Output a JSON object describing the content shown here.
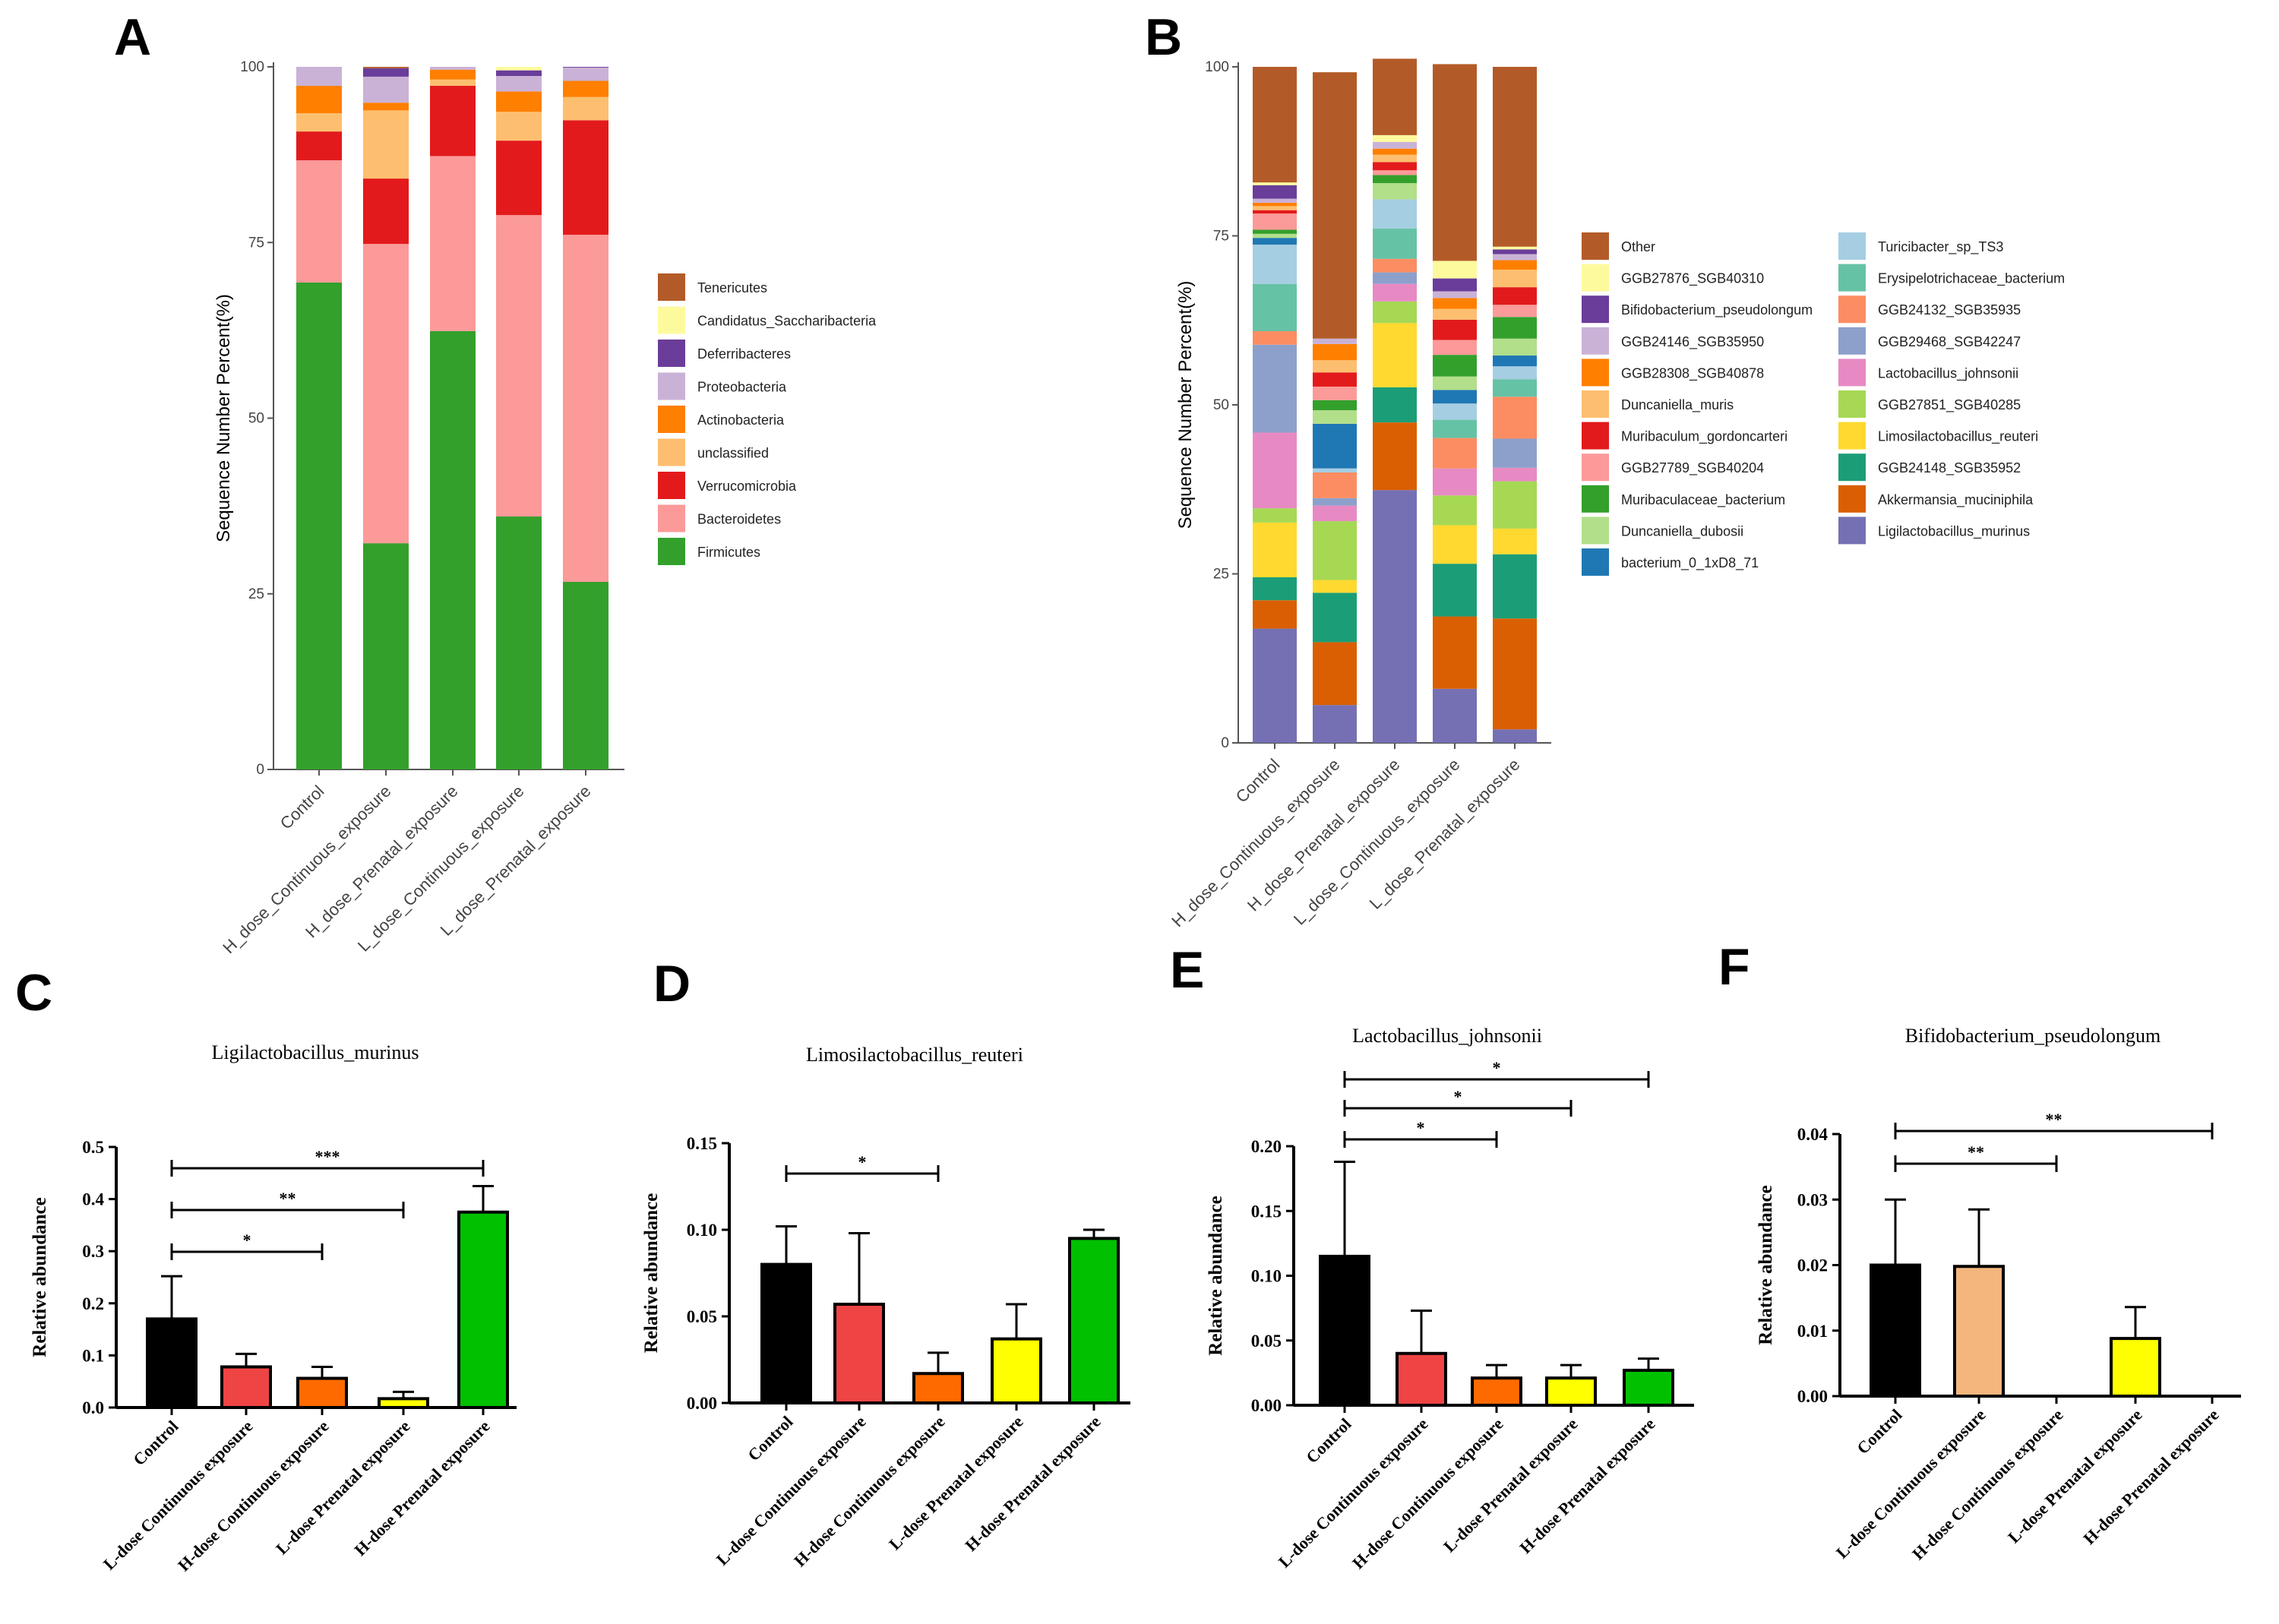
{
  "panels": {
    "a": "A",
    "b": "B",
    "c": "C",
    "d": "D",
    "e": "E",
    "f": "F"
  },
  "colors": {
    "Tenericutes": "#b35b28",
    "Candidatus_Saccharibacteria": "#fdfa9e",
    "Deferribacteres": "#6a3d9a",
    "Proteobacteria": "#cab2d6",
    "Actinobacteria": "#ff7f00",
    "unclassified": "#fdbf6f",
    "Verrucomicrobia": "#e31a1c",
    "Bacteroidetes": "#fb9a99",
    "Firmicutes": "#33a02c",
    "Other": "#b35b28",
    "GGB27876_SGB40310": "#fdfa9e",
    "Bifidobacterium_pseudolongum": "#6a3d9a",
    "GGB24146_SGB35950": "#cab2d6",
    "GGB28308_SGB40878": "#ff7f00",
    "Duncaniella_muris": "#fdbf6f",
    "Muribaculum_gordoncarteri": "#e31a1c",
    "GGB27789_SGB40204": "#fb9a99",
    "Muribaculaceae_bacterium": "#33a02c",
    "Duncaniella_dubosii": "#b2df8a",
    "bacterium_0_1xD8_71": "#1f78b4",
    "Turicibacter_sp_TS3": "#a6cee3",
    "Erysipelotrichaceae_bacterium": "#66c2a5",
    "GGB24132_SGB35935": "#fc8d62",
    "GGB29468_SGB42247": "#8da0cb",
    "Lactobacillus_johnsonii": "#e78ac3",
    "GGB27851_SGB40285": "#a6d854",
    "Limosilactobacillus_reuteri": "#ffd92f",
    "GGB24148_SGB35952": "#1b9e77",
    "Akkermansia_muciniphila": "#d95f02",
    "Ligilactobacillus_murinus": "#7570b3",
    "black": "#000000",
    "red": "#ef4444",
    "orange": "#ff6a00",
    "yellow": "#ffff00",
    "green": "#00c000",
    "tan": "#f4b67d"
  },
  "chart_data": [
    {
      "id": "A",
      "type": "bar",
      "stacked": true,
      "title": "",
      "xlabel": "",
      "ylabel": "Sequence Number Percent(%)",
      "ylim": [
        0,
        100
      ],
      "yticks": [
        "0",
        "25",
        "50",
        "75",
        "100"
      ],
      "categories": [
        "Control",
        "H_dose_Continuous_exposure",
        "H_dose_Prenatal_exposure",
        "L_dose_Continuous_exposure",
        "L_dose_Prenatal_exposure"
      ],
      "legend_position": "right",
      "series": [
        {
          "name": "Firmicutes",
          "values": [
            69.3,
            32.2,
            62.4,
            36.0,
            26.7
          ]
        },
        {
          "name": "Bacteroidetes",
          "values": [
            17.4,
            42.6,
            24.9,
            42.9,
            49.4
          ]
        },
        {
          "name": "Verrucomicrobia",
          "values": [
            4.1,
            9.3,
            10.0,
            10.6,
            16.3
          ]
        },
        {
          "name": "unclassified",
          "values": [
            2.6,
            9.7,
            0.9,
            4.1,
            3.3
          ]
        },
        {
          "name": "Actinobacteria",
          "values": [
            3.9,
            1.1,
            1.4,
            2.9,
            2.3
          ]
        },
        {
          "name": "Proteobacteria",
          "values": [
            2.7,
            3.7,
            0.4,
            2.2,
            1.9
          ]
        },
        {
          "name": "Deferribacteres",
          "values": [
            0.0,
            1.2,
            0.0,
            0.8,
            0.1
          ]
        },
        {
          "name": "Candidatus_Saccharibacteria",
          "values": [
            0.0,
            0.0,
            0.0,
            0.5,
            0.0
          ]
        },
        {
          "name": "Tenericutes",
          "values": [
            0.0,
            0.2,
            0.0,
            0.0,
            0.0
          ]
        }
      ]
    },
    {
      "id": "B",
      "type": "bar",
      "stacked": true,
      "title": "",
      "xlabel": "",
      "ylabel": "Sequence Number Percent(%)",
      "ylim": [
        0,
        100
      ],
      "yticks": [
        "0",
        "25",
        "50",
        "75",
        "100"
      ],
      "categories": [
        "Control",
        "H_dose_Continuous_exposure",
        "H_dose_Prenatal_exposure",
        "L_dose_Continuous_exposure",
        "L_dose_Prenatal_exposure"
      ],
      "legend_position": "right",
      "legend_order": [
        "Other",
        "GGB27876_SGB40310",
        "Bifidobacterium_pseudolongum",
        "GGB24146_SGB35950",
        "GGB28308_SGB40878",
        "Duncaniella_muris",
        "Muribaculum_gordoncarteri",
        "GGB27789_SGB40204",
        "Muribaculaceae_bacterium",
        "Duncaniella_dubosii",
        "bacterium_0_1xD8_71",
        "Turicibacter_sp_TS3",
        "Erysipelotrichaceae_bacterium",
        "GGB24132_SGB35935",
        "GGB29468_SGB42247",
        "Lactobacillus_johnsonii",
        "GGB27851_SGB40285",
        "Limosilactobacillus_reuteri",
        "GGB24148_SGB35952",
        "Akkermansia_muciniphila",
        "Ligilactobacillus_murinus"
      ],
      "series": [
        {
          "name": "Ligilactobacillus_murinus",
          "values": [
            16.9,
            5.6,
            37.4,
            8.0,
            2.0
          ]
        },
        {
          "name": "Akkermansia_muciniphila",
          "values": [
            4.2,
            9.3,
            10.0,
            10.7,
            16.4
          ]
        },
        {
          "name": "GGB24148_SGB35952",
          "values": [
            3.4,
            7.3,
            5.2,
            7.8,
            9.5
          ]
        },
        {
          "name": "Limosilactobacillus_reuteri",
          "values": [
            8.1,
            1.9,
            9.5,
            5.7,
            3.8
          ]
        },
        {
          "name": "GGB27851_SGB40285",
          "values": [
            2.1,
            8.7,
            3.2,
            4.4,
            7.0
          ]
        },
        {
          "name": "Lactobacillus_johnsonii",
          "values": [
            11.2,
            2.3,
            2.6,
            4.0,
            2.0
          ]
        },
        {
          "name": "GGB29468_SGB42247",
          "values": [
            13.0,
            1.1,
            1.7,
            0.0,
            4.3
          ]
        },
        {
          "name": "GGB24132_SGB35935",
          "values": [
            2.0,
            3.8,
            2.0,
            4.5,
            6.2
          ]
        },
        {
          "name": "Erysipelotrichaceae_bacterium",
          "values": [
            7.0,
            0.0,
            4.5,
            2.7,
            2.6
          ]
        },
        {
          "name": "Turicibacter_sp_TS3",
          "values": [
            5.8,
            0.6,
            4.3,
            2.4,
            1.9
          ]
        },
        {
          "name": "bacterium_0_1xD8_71",
          "values": [
            1.0,
            6.6,
            0.0,
            2.0,
            1.6
          ]
        },
        {
          "name": "Duncaniella_dubosii",
          "values": [
            0.6,
            2.0,
            2.4,
            2.0,
            2.5
          ]
        },
        {
          "name": "Muribaculaceae_bacterium",
          "values": [
            0.6,
            1.5,
            1.2,
            3.2,
            3.2
          ]
        },
        {
          "name": "GGB27789_SGB40204",
          "values": [
            2.4,
            2.0,
            0.7,
            2.2,
            1.8
          ]
        },
        {
          "name": "Muribaculum_gordoncarteri",
          "values": [
            0.5,
            2.1,
            1.2,
            3.0,
            2.6
          ]
        },
        {
          "name": "Duncaniella_muris",
          "values": [
            0.6,
            1.8,
            1.1,
            1.6,
            2.6
          ]
        },
        {
          "name": "GGB28308_SGB40878",
          "values": [
            0.5,
            2.4,
            0.9,
            1.6,
            1.4
          ]
        },
        {
          "name": "GGB24146_SGB35950",
          "values": [
            0.6,
            0.8,
            1.0,
            1.0,
            0.9
          ]
        },
        {
          "name": "Bifidobacterium_pseudolongum",
          "values": [
            2.0,
            0.0,
            0.0,
            1.9,
            0.7
          ]
        },
        {
          "name": "GGB27876_SGB40310",
          "values": [
            0.4,
            0.0,
            1.0,
            2.6,
            0.4
          ]
        },
        {
          "name": "Other",
          "values": [
            17.1,
            39.4,
            11.3,
            29.1,
            26.6
          ]
        }
      ]
    },
    {
      "id": "C",
      "type": "bar",
      "title": "Ligilactobacillus_murinus",
      "xlabel": "",
      "ylabel": "Relative abundance",
      "ylim": [
        0,
        0.5
      ],
      "yticks": [
        "0.0",
        "0.1",
        "0.2",
        "0.3",
        "0.4",
        "0.5"
      ],
      "categories": [
        "Control",
        "L-dose Continuous exposure",
        "H-dose Continuous exposure",
        "L-dose Prenatal exposure",
        "H-dose Prenatal exposure"
      ],
      "values": [
        0.17,
        0.078,
        0.056,
        0.017,
        0.375
      ],
      "errors": [
        0.082,
        0.025,
        0.022,
        0.013,
        0.05
      ],
      "bar_colors": [
        "black",
        "red",
        "orange",
        "yellow",
        "green"
      ],
      "significance": [
        {
          "from": 0,
          "to": 2,
          "label": "*"
        },
        {
          "from": 0,
          "to": 3,
          "label": "**"
        },
        {
          "from": 0,
          "to": 4,
          "label": "***"
        }
      ]
    },
    {
      "id": "D",
      "type": "bar",
      "title": "Limosilactobacillus_reuteri",
      "xlabel": "",
      "ylabel": "Relative abundance",
      "ylim": [
        0,
        0.15
      ],
      "yticks": [
        "0.00",
        "0.05",
        "0.10",
        "0.15"
      ],
      "categories": [
        "Control",
        "L-dose Continuous exposure",
        "H-dose Continuous exposure",
        "L-dose Prenatal exposure",
        "H-dose Prenatal exposure"
      ],
      "values": [
        0.08,
        0.057,
        0.017,
        0.037,
        0.095
      ],
      "errors": [
        0.022,
        0.041,
        0.012,
        0.02,
        0.005
      ],
      "bar_colors": [
        "black",
        "red",
        "orange",
        "yellow",
        "green"
      ],
      "significance": [
        {
          "from": 0,
          "to": 2,
          "label": "*"
        }
      ]
    },
    {
      "id": "E",
      "type": "bar",
      "title": "Lactobacillus_johnsonii",
      "xlabel": "",
      "ylabel": "Relative abundance",
      "ylim": [
        0,
        0.2
      ],
      "yticks": [
        "0.00",
        "0.05",
        "0.10",
        "0.15",
        "0.20"
      ],
      "categories": [
        "Control",
        "L-dose Continuous exposure",
        "H-dose Continuous exposure",
        "L-dose Prenatal exposure",
        "H-dose Prenatal exposure"
      ],
      "values": [
        0.115,
        0.04,
        0.021,
        0.021,
        0.027
      ],
      "errors": [
        0.073,
        0.033,
        0.01,
        0.01,
        0.009
      ],
      "bar_colors": [
        "black",
        "red",
        "orange",
        "yellow",
        "green"
      ],
      "significance": [
        {
          "from": 0,
          "to": 2,
          "label": "*"
        },
        {
          "from": 0,
          "to": 3,
          "label": "*"
        },
        {
          "from": 0,
          "to": 4,
          "label": "*"
        }
      ]
    },
    {
      "id": "F",
      "type": "bar",
      "title": "Bifidobacterium_pseudolongum",
      "xlabel": "",
      "ylabel": "Relative abundance",
      "ylim": [
        0,
        0.04
      ],
      "yticks": [
        "0.00",
        "0.01",
        "0.02",
        "0.03",
        "0.04"
      ],
      "categories": [
        "Control",
        "L-dose Continuous exposure",
        "H-dose Continuous exposure",
        "L-dose Prenatal exposure",
        "H-dose Prenatal exposure"
      ],
      "values": [
        0.02,
        0.0198,
        0.0,
        0.0088,
        0.0
      ],
      "errors": [
        0.01,
        0.0087,
        0.0,
        0.0048,
        0.0
      ],
      "bar_colors": [
        "black",
        "tan",
        "orange",
        "yellow",
        "green"
      ],
      "significance": [
        {
          "from": 0,
          "to": 2,
          "label": "**"
        },
        {
          "from": 0,
          "to": 4,
          "label": "**"
        }
      ]
    }
  ]
}
